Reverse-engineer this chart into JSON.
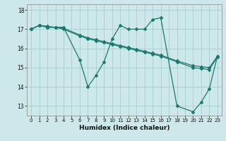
{
  "xlabel": "Humidex (Indice chaleur)",
  "background_color": "#cce8ea",
  "grid_color": "#aacccc",
  "line_color": "#1a7a6e",
  "xlim": [
    -0.5,
    23.5
  ],
  "ylim": [
    12.5,
    18.3
  ],
  "yticks": [
    13,
    14,
    15,
    16,
    17,
    18
  ],
  "xticks": [
    0,
    1,
    2,
    3,
    4,
    5,
    6,
    7,
    8,
    9,
    10,
    11,
    12,
    13,
    14,
    15,
    16,
    17,
    18,
    19,
    20,
    21,
    22,
    23
  ],
  "line1_x": [
    0,
    1,
    2,
    3,
    4,
    6,
    7,
    8,
    9,
    10,
    11,
    12,
    13,
    14,
    15,
    16,
    18,
    20,
    21,
    22,
    23
  ],
  "line1_y": [
    17.0,
    17.2,
    17.1,
    17.1,
    17.1,
    15.4,
    14.0,
    14.6,
    15.3,
    16.5,
    17.2,
    17.0,
    17.0,
    17.0,
    17.5,
    17.6,
    13.0,
    12.7,
    13.2,
    13.9,
    15.6
  ],
  "line2_x": [
    0,
    1,
    2,
    3,
    4,
    6,
    7,
    8,
    9,
    10,
    11,
    12,
    13,
    14,
    15,
    16,
    18,
    20,
    21,
    22,
    23
  ],
  "line2_y": [
    17.0,
    17.2,
    17.15,
    17.1,
    17.05,
    16.7,
    16.55,
    16.45,
    16.35,
    16.25,
    16.15,
    16.05,
    15.95,
    15.85,
    15.75,
    15.65,
    15.35,
    15.1,
    15.05,
    15.0,
    15.6
  ],
  "line3_x": [
    0,
    1,
    2,
    3,
    4,
    6,
    7,
    8,
    9,
    10,
    11,
    12,
    13,
    14,
    15,
    16,
    18,
    20,
    21,
    22,
    23
  ],
  "line3_y": [
    17.0,
    17.2,
    17.1,
    17.1,
    17.0,
    16.65,
    16.5,
    16.4,
    16.3,
    16.2,
    16.1,
    16.0,
    15.9,
    15.8,
    15.7,
    15.6,
    15.3,
    15.0,
    14.95,
    14.9,
    15.55
  ]
}
